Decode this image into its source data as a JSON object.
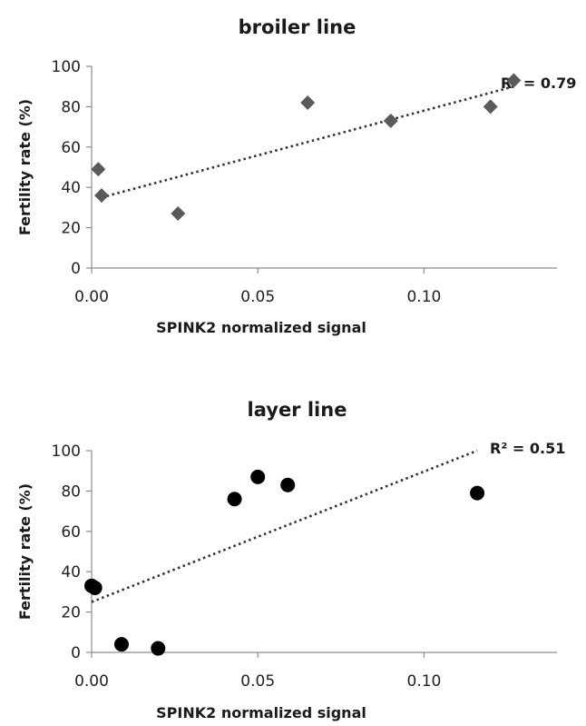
{
  "chart_data": [
    {
      "type": "scatter",
      "title": "broiler line",
      "xlabel": "SPINK2 normalized signal",
      "ylabel": "Fertility rate (%)",
      "xlim": [
        0,
        0.14
      ],
      "ylim": [
        0,
        100
      ],
      "xticks": [
        "0.00",
        "0.05",
        "0.10"
      ],
      "xtick_values": [
        0,
        0.05,
        0.1
      ],
      "yticks": [
        "0",
        "20",
        "40",
        "60",
        "80",
        "100"
      ],
      "ytick_values": [
        0,
        20,
        40,
        60,
        80,
        100
      ],
      "marker": "diamond",
      "marker_color": "#5a5a5a",
      "points": [
        {
          "x": 0.002,
          "y": 49
        },
        {
          "x": 0.003,
          "y": 36
        },
        {
          "x": 0.026,
          "y": 27
        },
        {
          "x": 0.065,
          "y": 82
        },
        {
          "x": 0.09,
          "y": 73
        },
        {
          "x": 0.12,
          "y": 80
        },
        {
          "x": 0.127,
          "y": 93
        }
      ],
      "trendline": {
        "style": "dotted",
        "x": [
          0.003,
          0.127
        ],
        "y": [
          35,
          90
        ]
      },
      "annotation": "R² = 0.79"
    },
    {
      "type": "scatter",
      "title": "layer line",
      "xlabel": "SPINK2 normalized signal",
      "ylabel": "Fertility rate (%)",
      "xlim": [
        0,
        0.14
      ],
      "ylim": [
        0,
        100
      ],
      "xticks": [
        "0.00",
        "0.05",
        "0.10"
      ],
      "xtick_values": [
        0,
        0.05,
        0.1
      ],
      "yticks": [
        "0",
        "20",
        "40",
        "60",
        "80",
        "100"
      ],
      "ytick_values": [
        0,
        20,
        40,
        60,
        80,
        100
      ],
      "marker": "circle",
      "marker_color": "#000000",
      "points": [
        {
          "x": 0.0,
          "y": 33
        },
        {
          "x": 0.001,
          "y": 32
        },
        {
          "x": 0.009,
          "y": 4
        },
        {
          "x": 0.02,
          "y": 2
        },
        {
          "x": 0.043,
          "y": 76
        },
        {
          "x": 0.05,
          "y": 87
        },
        {
          "x": 0.059,
          "y": 83
        },
        {
          "x": 0.116,
          "y": 79
        }
      ],
      "trendline": {
        "style": "dotted",
        "x": [
          0.0,
          0.116
        ],
        "y": [
          25,
          100
        ]
      },
      "annotation": "R² = 0.51"
    }
  ]
}
